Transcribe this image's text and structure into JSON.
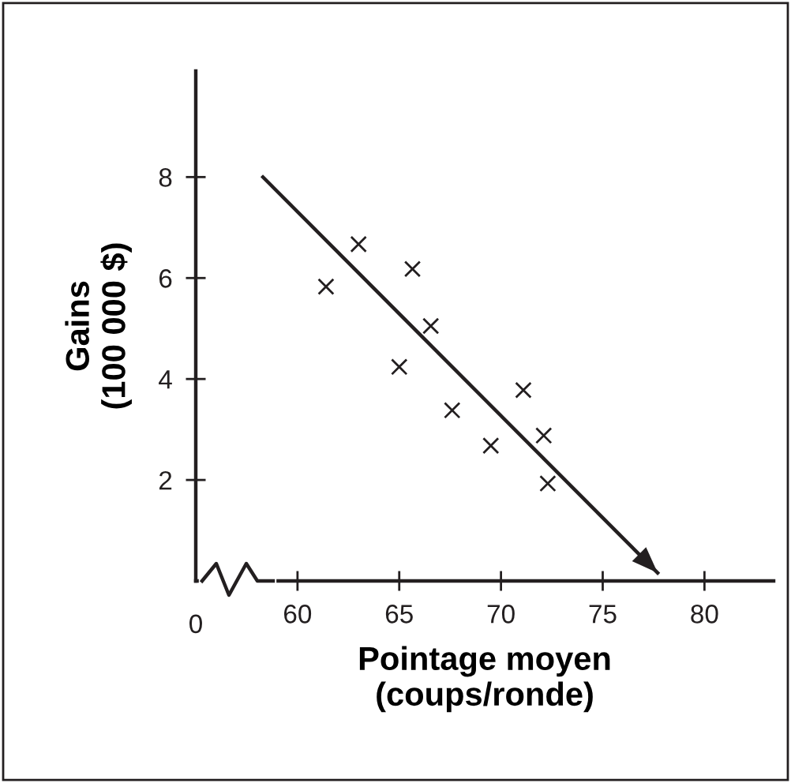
{
  "chart_data": {
    "type": "scatter",
    "xlabel": "Pointage moyen\n(coups/ronde)",
    "ylabel": "Gains\n(100 000 $)",
    "xlim": [
      55,
      83.4
    ],
    "ylim": [
      0,
      10.1
    ],
    "xticks": [
      60,
      65,
      70,
      75,
      80
    ],
    "yticks": [
      2,
      4,
      6,
      8
    ],
    "annotations": [
      "0"
    ],
    "grid": false,
    "series": [
      {
        "type": "scatter",
        "marker": "cross",
        "color": "#231f20",
        "x": [
          61.4,
          63.0,
          65.65,
          66.55,
          65.0,
          67.6,
          69.5,
          71.1,
          72.1,
          72.3
        ],
        "values": [
          5.83,
          6.67,
          6.18,
          5.05,
          4.24,
          3.38,
          2.68,
          3.78,
          2.88,
          1.93
        ]
      },
      {
        "type": "line",
        "line_style": "solid",
        "color": "#231f20",
        "x": [
          58.3,
          77.7
        ],
        "values": [
          8.0,
          0.16
        ]
      }
    ]
  }
}
